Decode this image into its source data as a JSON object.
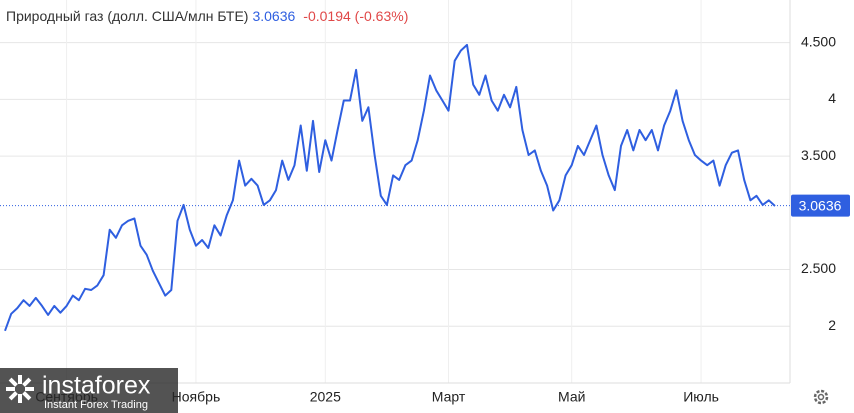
{
  "chart_data": {
    "type": "line",
    "title": "Природный газ (долл. США/млн БТЕ)",
    "last_price": 3.0636,
    "change_label": "-0.0194 (-0.63%)",
    "watermark": {
      "brand": "instaforex",
      "tagline": "Instant Forex Trading"
    },
    "categories": [
      null,
      null,
      null,
      null,
      null,
      null,
      null,
      null,
      null,
      null,
      "Сентябрь",
      null,
      null,
      null,
      null,
      null,
      null,
      null,
      null,
      null,
      null,
      null,
      null,
      null,
      null,
      null,
      null,
      null,
      null,
      null,
      null,
      "Ноябрь",
      null,
      null,
      null,
      null,
      null,
      null,
      null,
      null,
      null,
      null,
      null,
      null,
      null,
      null,
      null,
      null,
      null,
      null,
      null,
      null,
      "2025",
      null,
      null,
      null,
      null,
      null,
      null,
      null,
      null,
      null,
      null,
      null,
      null,
      null,
      null,
      null,
      null,
      null,
      null,
      null,
      "Март",
      null,
      null,
      null,
      null,
      null,
      null,
      null,
      null,
      null,
      null,
      null,
      null,
      null,
      null,
      null,
      null,
      null,
      null,
      null,
      "Май",
      null,
      null,
      null,
      null,
      null,
      null,
      null,
      null,
      null,
      null,
      null,
      null,
      null,
      null,
      null,
      null,
      null,
      null,
      null,
      null,
      "Июль",
      null,
      null,
      null,
      null,
      null,
      null,
      null,
      null,
      null,
      null,
      null,
      null
    ],
    "series": [
      {
        "color": "#2f5fe0",
        "values": [
          1.96,
          2.11,
          2.16,
          2.23,
          2.18,
          2.25,
          2.18,
          2.1,
          2.18,
          2.12,
          2.18,
          2.27,
          2.23,
          2.33,
          2.32,
          2.36,
          2.45,
          2.85,
          2.78,
          2.89,
          2.93,
          2.95,
          2.71,
          2.63,
          2.49,
          2.38,
          2.27,
          2.32,
          2.93,
          3.07,
          2.85,
          2.71,
          2.76,
          2.69,
          2.89,
          2.8,
          2.98,
          3.11,
          3.46,
          3.24,
          3.3,
          3.24,
          3.07,
          3.11,
          3.2,
          3.46,
          3.29,
          3.42,
          3.77,
          3.37,
          3.81,
          3.36,
          3.64,
          3.46,
          3.73,
          3.99,
          3.99,
          4.26,
          3.81,
          3.93,
          3.51,
          3.15,
          3.07,
          3.33,
          3.29,
          3.42,
          3.46,
          3.64,
          3.9,
          4.21,
          4.08,
          3.99,
          3.9,
          4.34,
          4.43,
          4.48,
          4.13,
          4.04,
          4.21,
          3.99,
          3.9,
          4.04,
          3.93,
          4.11,
          3.73,
          3.51,
          3.55,
          3.37,
          3.24,
          3.02,
          3.11,
          3.33,
          3.42,
          3.59,
          3.51,
          3.64,
          3.77,
          3.51,
          3.33,
          3.2,
          3.59,
          3.73,
          3.55,
          3.73,
          3.64,
          3.73,
          3.55,
          3.77,
          3.9,
          4.08,
          3.81,
          3.64,
          3.51,
          3.46,
          3.42,
          3.46,
          3.24,
          3.42,
          3.53,
          3.55,
          3.29,
          3.11,
          3.15,
          3.07,
          3.11,
          3.06
        ]
      }
    ],
    "ylim": [
      1.5,
      4.77
    ],
    "yticks": [
      2,
      {
        "value": 2.5,
        "label": "2.500"
      },
      {
        "value": 3.5,
        "label": "3.500"
      },
      4,
      {
        "value": 4.5,
        "label": "4.500"
      }
    ],
    "grid": true
  }
}
